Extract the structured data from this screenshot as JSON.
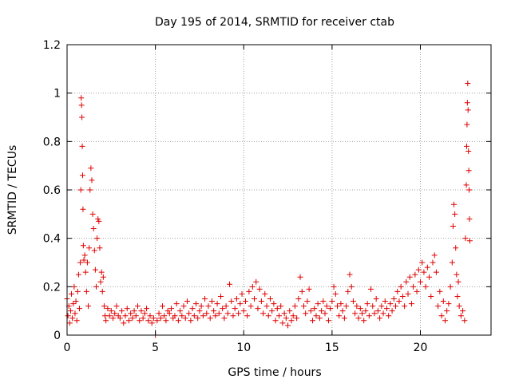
{
  "chart_data": {
    "type": "scatter",
    "title": "Day 195 of 2014, SRMTID for receiver ctab",
    "xlabel": "GPS time / hours",
    "ylabel": "SRMTID / TECUs",
    "xlim": [
      0,
      24
    ],
    "ylim": [
      0,
      1.2
    ],
    "xticks": [
      0,
      5,
      10,
      15,
      20
    ],
    "xtick_labels": [
      "0",
      "5",
      "10",
      "15",
      "20"
    ],
    "yticks": [
      0,
      0.2,
      0.4,
      0.6,
      0.8,
      1.0,
      1.2
    ],
    "ytick_labels": [
      "0",
      "0.2",
      "0.4",
      "0.6",
      "0.8",
      "1",
      "1.2"
    ],
    "grid": true,
    "marker": "+",
    "color": "#e00000",
    "series": [
      {
        "name": "SRMTID",
        "points": [
          [
            0.0,
            0.15
          ],
          [
            0.05,
            0.08
          ],
          [
            0.1,
            0.12
          ],
          [
            0.15,
            0.05
          ],
          [
            0.2,
            0.1
          ],
          [
            0.25,
            0.17
          ],
          [
            0.3,
            0.07
          ],
          [
            0.35,
            0.13
          ],
          [
            0.4,
            0.2
          ],
          [
            0.45,
            0.09
          ],
          [
            0.5,
            0.14
          ],
          [
            0.55,
            0.06
          ],
          [
            0.6,
            0.18
          ],
          [
            0.65,
            0.25
          ],
          [
            0.7,
            0.11
          ],
          [
            0.75,
            0.3
          ],
          [
            0.78,
            0.6
          ],
          [
            0.8,
            0.98
          ],
          [
            0.82,
            0.95
          ],
          [
            0.84,
            0.9
          ],
          [
            0.86,
            0.78
          ],
          [
            0.88,
            0.66
          ],
          [
            0.9,
            0.52
          ],
          [
            0.92,
            0.37
          ],
          [
            0.95,
            0.31
          ],
          [
            1.0,
            0.33
          ],
          [
            1.05,
            0.26
          ],
          [
            1.1,
            0.18
          ],
          [
            1.15,
            0.3
          ],
          [
            1.2,
            0.12
          ],
          [
            1.25,
            0.36
          ],
          [
            1.3,
            0.6
          ],
          [
            1.35,
            0.69
          ],
          [
            1.4,
            0.64
          ],
          [
            1.45,
            0.5
          ],
          [
            1.5,
            0.44
          ],
          [
            1.55,
            0.35
          ],
          [
            1.6,
            0.27
          ],
          [
            1.65,
            0.2
          ],
          [
            1.7,
            0.4
          ],
          [
            1.75,
            0.48
          ],
          [
            1.8,
            0.47
          ],
          [
            1.85,
            0.36
          ],
          [
            1.9,
            0.22
          ],
          [
            1.95,
            0.26
          ],
          [
            2.0,
            0.18
          ],
          [
            2.05,
            0.24
          ],
          [
            2.1,
            0.12
          ],
          [
            2.15,
            0.08
          ],
          [
            2.2,
            0.06
          ],
          [
            2.3,
            0.11
          ],
          [
            2.4,
            0.08
          ],
          [
            2.5,
            0.1
          ],
          [
            2.6,
            0.07
          ],
          [
            2.7,
            0.09
          ],
          [
            2.8,
            0.12
          ],
          [
            2.9,
            0.08
          ],
          [
            3.0,
            0.07
          ],
          [
            3.1,
            0.1
          ],
          [
            3.2,
            0.05
          ],
          [
            3.3,
            0.08
          ],
          [
            3.4,
            0.11
          ],
          [
            3.5,
            0.06
          ],
          [
            3.6,
            0.09
          ],
          [
            3.7,
            0.07
          ],
          [
            3.8,
            0.1
          ],
          [
            3.9,
            0.08
          ],
          [
            4.0,
            0.12
          ],
          [
            4.1,
            0.06
          ],
          [
            4.2,
            0.1
          ],
          [
            4.3,
            0.07
          ],
          [
            4.4,
            0.09
          ],
          [
            4.5,
            0.11
          ],
          [
            4.6,
            0.06
          ],
          [
            4.7,
            0.08
          ],
          [
            4.8,
            0.05
          ],
          [
            4.9,
            0.07
          ],
          [
            5.0,
            0.0
          ],
          [
            5.1,
            0.06
          ],
          [
            5.2,
            0.09
          ],
          [
            5.3,
            0.07
          ],
          [
            5.4,
            0.12
          ],
          [
            5.5,
            0.08
          ],
          [
            5.6,
            0.06
          ],
          [
            5.7,
            0.1
          ],
          [
            5.8,
            0.09
          ],
          [
            5.9,
            0.11
          ],
          [
            6.0,
            0.07
          ],
          [
            6.1,
            0.08
          ],
          [
            6.2,
            0.13
          ],
          [
            6.3,
            0.06
          ],
          [
            6.4,
            0.1
          ],
          [
            6.5,
            0.08
          ],
          [
            6.6,
            0.12
          ],
          [
            6.7,
            0.07
          ],
          [
            6.8,
            0.14
          ],
          [
            6.9,
            0.09
          ],
          [
            7.0,
            0.06
          ],
          [
            7.1,
            0.11
          ],
          [
            7.2,
            0.08
          ],
          [
            7.3,
            0.13
          ],
          [
            7.4,
            0.07
          ],
          [
            7.5,
            0.1
          ],
          [
            7.6,
            0.12
          ],
          [
            7.7,
            0.08
          ],
          [
            7.8,
            0.15
          ],
          [
            7.9,
            0.09
          ],
          [
            8.0,
            0.12
          ],
          [
            8.1,
            0.07
          ],
          [
            8.2,
            0.14
          ],
          [
            8.3,
            0.1
          ],
          [
            8.4,
            0.08
          ],
          [
            8.5,
            0.13
          ],
          [
            8.6,
            0.09
          ],
          [
            8.7,
            0.16
          ],
          [
            8.8,
            0.11
          ],
          [
            8.9,
            0.07
          ],
          [
            9.0,
            0.12
          ],
          [
            9.1,
            0.09
          ],
          [
            9.2,
            0.21
          ],
          [
            9.3,
            0.14
          ],
          [
            9.4,
            0.08
          ],
          [
            9.5,
            0.11
          ],
          [
            9.6,
            0.15
          ],
          [
            9.7,
            0.09
          ],
          [
            9.8,
            0.13
          ],
          [
            9.9,
            0.17
          ],
          [
            10.0,
            0.1
          ],
          [
            10.1,
            0.14
          ],
          [
            10.2,
            0.08
          ],
          [
            10.3,
            0.18
          ],
          [
            10.4,
            0.12
          ],
          [
            10.5,
            0.2
          ],
          [
            10.6,
            0.15
          ],
          [
            10.7,
            0.22
          ],
          [
            10.8,
            0.11
          ],
          [
            10.9,
            0.19
          ],
          [
            11.0,
            0.14
          ],
          [
            11.1,
            0.09
          ],
          [
            11.2,
            0.17
          ],
          [
            11.3,
            0.12
          ],
          [
            11.4,
            0.08
          ],
          [
            11.5,
            0.15
          ],
          [
            11.6,
            0.1
          ],
          [
            11.7,
            0.13
          ],
          [
            11.8,
            0.06
          ],
          [
            11.9,
            0.11
          ],
          [
            12.0,
            0.08
          ],
          [
            12.1,
            0.12
          ],
          [
            12.2,
            0.05
          ],
          [
            12.3,
            0.09
          ],
          [
            12.4,
            0.07
          ],
          [
            12.5,
            0.04
          ],
          [
            12.6,
            0.1
          ],
          [
            12.7,
            0.06
          ],
          [
            12.8,
            0.08
          ],
          [
            12.9,
            0.12
          ],
          [
            13.0,
            0.07
          ],
          [
            13.1,
            0.15
          ],
          [
            13.2,
            0.24
          ],
          [
            13.3,
            0.18
          ],
          [
            13.4,
            0.12
          ],
          [
            13.5,
            0.09
          ],
          [
            13.6,
            0.14
          ],
          [
            13.7,
            0.19
          ],
          [
            13.8,
            0.1
          ],
          [
            13.9,
            0.06
          ],
          [
            14.0,
            0.11
          ],
          [
            14.1,
            0.08
          ],
          [
            14.2,
            0.13
          ],
          [
            14.3,
            0.07
          ],
          [
            14.4,
            0.1
          ],
          [
            14.5,
            0.14
          ],
          [
            14.6,
            0.09
          ],
          [
            14.7,
            0.12
          ],
          [
            14.8,
            0.06
          ],
          [
            14.9,
            0.11
          ],
          [
            15.0,
            0.14
          ],
          [
            15.1,
            0.2
          ],
          [
            15.2,
            0.17
          ],
          [
            15.3,
            0.12
          ],
          [
            15.4,
            0.08
          ],
          [
            15.5,
            0.13
          ],
          [
            15.6,
            0.1
          ],
          [
            15.7,
            0.07
          ],
          [
            15.8,
            0.12
          ],
          [
            15.9,
            0.18
          ],
          [
            16.0,
            0.25
          ],
          [
            16.1,
            0.2
          ],
          [
            16.2,
            0.14
          ],
          [
            16.3,
            0.09
          ],
          [
            16.4,
            0.12
          ],
          [
            16.5,
            0.07
          ],
          [
            16.6,
            0.11
          ],
          [
            16.7,
            0.09
          ],
          [
            16.8,
            0.06
          ],
          [
            16.9,
            0.1
          ],
          [
            17.0,
            0.13
          ],
          [
            17.1,
            0.08
          ],
          [
            17.2,
            0.19
          ],
          [
            17.3,
            0.12
          ],
          [
            17.4,
            0.09
          ],
          [
            17.5,
            0.15
          ],
          [
            17.6,
            0.1
          ],
          [
            17.7,
            0.07
          ],
          [
            17.8,
            0.12
          ],
          [
            17.9,
            0.09
          ],
          [
            18.0,
            0.14
          ],
          [
            18.1,
            0.11
          ],
          [
            18.2,
            0.08
          ],
          [
            18.3,
            0.13
          ],
          [
            18.4,
            0.1
          ],
          [
            18.5,
            0.15
          ],
          [
            18.6,
            0.12
          ],
          [
            18.7,
            0.18
          ],
          [
            18.8,
            0.14
          ],
          [
            18.9,
            0.2
          ],
          [
            19.0,
            0.16
          ],
          [
            19.1,
            0.12
          ],
          [
            19.2,
            0.22
          ],
          [
            19.3,
            0.17
          ],
          [
            19.4,
            0.24
          ],
          [
            19.5,
            0.13
          ],
          [
            19.6,
            0.2
          ],
          [
            19.7,
            0.25
          ],
          [
            19.8,
            0.18
          ],
          [
            19.9,
            0.27
          ],
          [
            20.0,
            0.22
          ],
          [
            20.1,
            0.3
          ],
          [
            20.2,
            0.26
          ],
          [
            20.3,
            0.2
          ],
          [
            20.4,
            0.28
          ],
          [
            20.5,
            0.24
          ],
          [
            20.6,
            0.16
          ],
          [
            20.7,
            0.3
          ],
          [
            20.8,
            0.33
          ],
          [
            20.9,
            0.26
          ],
          [
            21.0,
            0.12
          ],
          [
            21.1,
            0.18
          ],
          [
            21.2,
            0.08
          ],
          [
            21.3,
            0.14
          ],
          [
            21.4,
            0.06
          ],
          [
            21.5,
            0.1
          ],
          [
            21.6,
            0.13
          ],
          [
            21.7,
            0.2
          ],
          [
            21.8,
            0.3
          ],
          [
            21.85,
            0.45
          ],
          [
            21.9,
            0.54
          ],
          [
            21.95,
            0.5
          ],
          [
            22.0,
            0.36
          ],
          [
            22.05,
            0.25
          ],
          [
            22.1,
            0.16
          ],
          [
            22.15,
            0.22
          ],
          [
            22.2,
            0.12
          ],
          [
            22.3,
            0.08
          ],
          [
            22.4,
            0.1
          ],
          [
            22.5,
            0.06
          ],
          [
            22.55,
            0.4
          ],
          [
            22.6,
            0.62
          ],
          [
            22.62,
            0.78
          ],
          [
            22.64,
            0.87
          ],
          [
            22.66,
            0.96
          ],
          [
            22.68,
            1.04
          ],
          [
            22.7,
            0.93
          ],
          [
            22.72,
            0.76
          ],
          [
            22.74,
            0.68
          ],
          [
            22.76,
            0.6
          ],
          [
            22.78,
            0.48
          ],
          [
            22.8,
            0.39
          ]
        ]
      }
    ]
  }
}
